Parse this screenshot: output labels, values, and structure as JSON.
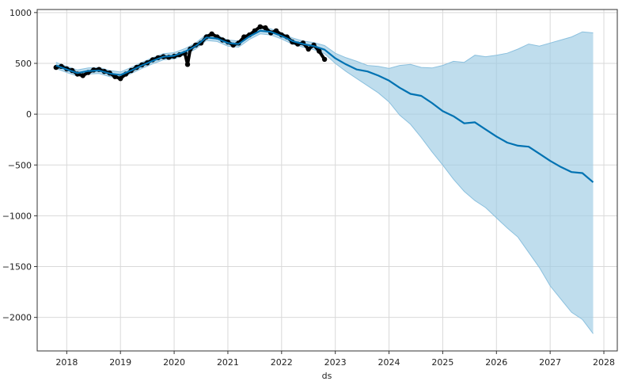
{
  "chart_data": {
    "type": "line",
    "xlabel": "ds",
    "ylabel": "",
    "xlim": [
      2017.45,
      2028.25
    ],
    "ylim": [
      -2330,
      1030
    ],
    "grid": true,
    "x_ticks": [
      2018,
      2019,
      2020,
      2021,
      2022,
      2023,
      2024,
      2025,
      2026,
      2027,
      2028
    ],
    "x_tick_labels": [
      "2018",
      "2019",
      "2020",
      "2021",
      "2022",
      "2023",
      "2024",
      "2025",
      "2026",
      "2027",
      "2028"
    ],
    "y_ticks": [
      1000,
      500,
      0,
      -500,
      -1000,
      -1500,
      -2000
    ],
    "y_tick_labels": [
      "1000",
      "500",
      "0",
      "−500",
      "−1000",
      "−1500",
      "−2000"
    ],
    "colors": {
      "forecast": "#0072b2",
      "interval_fill": "#9ccbe3",
      "interval_edge": "#8bc0de",
      "observed": "#000000",
      "grid": "#d9d9d9",
      "axes": "#333333"
    },
    "series": [
      {
        "role": "forecast",
        "x": [
          2017.8,
          2018.0,
          2018.2,
          2018.4,
          2018.6,
          2018.8,
          2019.0,
          2019.2,
          2019.4,
          2019.6,
          2019.8,
          2020.0,
          2020.2,
          2020.4,
          2020.6,
          2020.8,
          2021.0,
          2021.2,
          2021.4,
          2021.6,
          2021.8,
          2022.0,
          2022.2,
          2022.4,
          2022.6,
          2022.8,
          2023.0,
          2023.2,
          2023.4,
          2023.6,
          2023.8,
          2024.0,
          2024.2,
          2024.4,
          2024.6,
          2024.8,
          2025.0,
          2025.2,
          2025.4,
          2025.6,
          2025.8,
          2026.0,
          2026.2,
          2026.4,
          2026.6,
          2026.8,
          2027.0,
          2027.2,
          2027.4,
          2027.6,
          2027.8
        ],
        "y": [
          480,
          440,
          405,
          425,
          430,
          400,
          385,
          430,
          480,
          525,
          565,
          575,
          615,
          670,
          755,
          745,
          700,
          690,
          765,
          820,
          810,
          770,
          720,
          690,
          670,
          635,
          550,
          490,
          440,
          420,
          380,
          330,
          260,
          200,
          180,
          110,
          30,
          -20,
          -90,
          -80,
          -150,
          -220,
          -280,
          -310,
          -320,
          -390,
          -460,
          -520,
          -570,
          -580,
          -670
        ]
      },
      {
        "role": "uncertainty_interval",
        "x": [
          2017.8,
          2018.0,
          2018.2,
          2018.4,
          2018.6,
          2018.8,
          2019.0,
          2019.2,
          2019.4,
          2019.6,
          2019.8,
          2020.0,
          2020.2,
          2020.4,
          2020.6,
          2020.8,
          2021.0,
          2021.2,
          2021.4,
          2021.6,
          2021.8,
          2022.0,
          2022.2,
          2022.4,
          2022.6,
          2022.8,
          2023.0,
          2023.2,
          2023.4,
          2023.6,
          2023.8,
          2024.0,
          2024.2,
          2024.4,
          2024.6,
          2024.8,
          2025.0,
          2025.2,
          2025.4,
          2025.6,
          2025.8,
          2026.0,
          2026.2,
          2026.4,
          2026.6,
          2026.8,
          2027.0,
          2027.2,
          2027.4,
          2027.6,
          2027.8
        ],
        "upper": [
          510,
          470,
          435,
          455,
          460,
          430,
          415,
          460,
          510,
          555,
          595,
          605,
          645,
          700,
          785,
          775,
          730,
          720,
          795,
          850,
          840,
          800,
          750,
          720,
          705,
          675,
          600,
          555,
          520,
          480,
          470,
          450,
          480,
          490,
          460,
          455,
          480,
          520,
          510,
          580,
          565,
          580,
          600,
          640,
          690,
          670,
          700,
          730,
          760,
          810,
          800
        ],
        "lower": [
          450,
          410,
          375,
          395,
          400,
          370,
          355,
          400,
          450,
          495,
          535,
          545,
          585,
          640,
          725,
          715,
          670,
          660,
          735,
          790,
          780,
          740,
          690,
          660,
          635,
          595,
          500,
          420,
          350,
          280,
          210,
          120,
          -10,
          -100,
          -230,
          -370,
          -500,
          -640,
          -760,
          -850,
          -920,
          -1020,
          -1120,
          -1210,
          -1360,
          -1510,
          -1690,
          -1820,
          -1950,
          -2020,
          -2160
        ]
      },
      {
        "role": "observed",
        "x": [
          2017.8,
          2017.9,
          2018.0,
          2018.1,
          2018.2,
          2018.3,
          2018.4,
          2018.5,
          2018.6,
          2018.7,
          2018.8,
          2018.9,
          2019.0,
          2019.1,
          2019.2,
          2019.3,
          2019.4,
          2019.5,
          2019.6,
          2019.7,
          2019.8,
          2019.9,
          2020.0,
          2020.1,
          2020.2,
          2020.25,
          2020.3,
          2020.4,
          2020.5,
          2020.6,
          2020.7,
          2020.8,
          2020.9,
          2021.0,
          2021.1,
          2021.2,
          2021.3,
          2021.4,
          2021.5,
          2021.6,
          2021.7,
          2021.8,
          2021.9,
          2022.0,
          2022.1,
          2022.2,
          2022.3,
          2022.4,
          2022.5,
          2022.6,
          2022.7,
          2022.8
        ],
        "y": [
          460,
          470,
          445,
          430,
          395,
          380,
          410,
          435,
          440,
          420,
          405,
          370,
          350,
          395,
          430,
          460,
          485,
          505,
          535,
          555,
          565,
          560,
          570,
          585,
          600,
          490,
          640,
          680,
          700,
          760,
          790,
          760,
          730,
          710,
          680,
          700,
          760,
          780,
          820,
          860,
          850,
          800,
          820,
          780,
          760,
          710,
          690,
          700,
          640,
          680,
          620,
          540
        ]
      }
    ]
  }
}
